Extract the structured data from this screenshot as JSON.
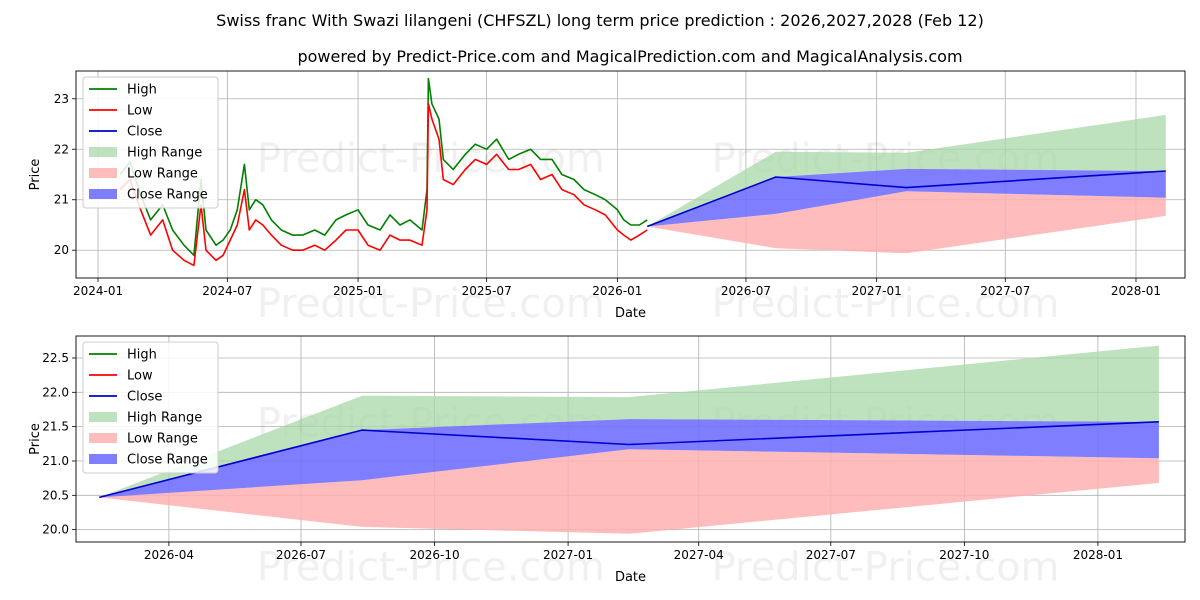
{
  "page": {
    "title": "Swiss franc With Swazi lilangeni (CHFSZL) long term price prediction : 2026,2027,2028 (Feb 12)",
    "subtitle": "powered by Predict-Price.com and MagicalPrediction.com and MagicalAnalysis.com",
    "watermark": "Predict-Price.com"
  },
  "colors": {
    "high": "#008000",
    "low": "#ff0000",
    "close": "#0000cd",
    "high_range": "#a8d8a8",
    "low_range": "#ffb0b0",
    "close_range": "#7070ff",
    "grid": "#b0b0b0"
  },
  "chart_data": [
    {
      "type": "line",
      "panel": "top",
      "xlabel": "Date",
      "ylabel": "Price",
      "xlim": [
        "2023-12-01",
        "2028-03-10"
      ],
      "ylim": [
        19.45,
        23.55
      ],
      "x_ticks": [
        {
          "date": "2024-01-01",
          "label": "2024-01"
        },
        {
          "date": "2024-07-01",
          "label": "2024-07"
        },
        {
          "date": "2025-01-01",
          "label": "2025-01"
        },
        {
          "date": "2025-07-01",
          "label": "2025-07"
        },
        {
          "date": "2026-01-01",
          "label": "2026-01"
        },
        {
          "date": "2026-07-01",
          "label": "2026-07"
        },
        {
          "date": "2027-01-01",
          "label": "2027-01"
        },
        {
          "date": "2027-07-01",
          "label": "2027-07"
        },
        {
          "date": "2028-01-01",
          "label": "2028-01"
        }
      ],
      "y_ticks": [
        {
          "value": 20,
          "label": "20"
        },
        {
          "value": 21,
          "label": "21"
        },
        {
          "value": 22,
          "label": "22"
        },
        {
          "value": 23,
          "label": "23"
        }
      ],
      "legend": [
        "High",
        "Low",
        "Close",
        "High Range",
        "Low Range",
        "Close Range"
      ],
      "legend_position": "upper-left",
      "history": {
        "dates": [
          "2024-02-01",
          "2024-02-15",
          "2024-03-01",
          "2024-03-15",
          "2024-04-01",
          "2024-04-15",
          "2024-05-01",
          "2024-05-15",
          "2024-05-25",
          "2024-06-01",
          "2024-06-15",
          "2024-06-25",
          "2024-07-05",
          "2024-07-15",
          "2024-07-25",
          "2024-08-01",
          "2024-08-10",
          "2024-08-20",
          "2024-09-01",
          "2024-09-15",
          "2024-10-01",
          "2024-10-15",
          "2024-11-01",
          "2024-11-15",
          "2024-12-01",
          "2024-12-15",
          "2025-01-01",
          "2025-01-15",
          "2025-02-01",
          "2025-02-15",
          "2025-03-01",
          "2025-03-15",
          "2025-04-01",
          "2025-04-08",
          "2025-04-10",
          "2025-04-15",
          "2025-04-25",
          "2025-05-01",
          "2025-05-15",
          "2025-06-01",
          "2025-06-15",
          "2025-07-01",
          "2025-07-15",
          "2025-08-01",
          "2025-08-15",
          "2025-09-01",
          "2025-09-15",
          "2025-10-01",
          "2025-10-15",
          "2025-11-01",
          "2025-11-15",
          "2025-12-01",
          "2025-12-15",
          "2026-01-01",
          "2026-01-10",
          "2026-01-20",
          "2026-02-01",
          "2026-02-12"
        ],
        "high": [
          21.5,
          21.75,
          21.1,
          20.6,
          20.9,
          20.4,
          20.1,
          19.9,
          21.4,
          20.4,
          20.1,
          20.2,
          20.4,
          20.8,
          21.7,
          20.8,
          21.0,
          20.9,
          20.6,
          20.4,
          20.3,
          20.3,
          20.4,
          20.3,
          20.6,
          20.7,
          20.8,
          20.5,
          20.4,
          20.7,
          20.5,
          20.6,
          20.4,
          21.2,
          23.4,
          22.9,
          22.6,
          21.8,
          21.6,
          21.9,
          22.1,
          22.0,
          22.2,
          21.8,
          21.9,
          22.0,
          21.8,
          21.8,
          21.5,
          21.4,
          21.2,
          21.1,
          21.0,
          20.8,
          20.6,
          20.5,
          20.5,
          20.6
        ],
        "low": [
          21.2,
          21.4,
          20.8,
          20.3,
          20.6,
          20.0,
          19.8,
          19.7,
          20.9,
          20.0,
          19.8,
          19.9,
          20.2,
          20.5,
          21.2,
          20.4,
          20.6,
          20.5,
          20.3,
          20.1,
          20.0,
          20.0,
          20.1,
          20.0,
          20.2,
          20.4,
          20.4,
          20.1,
          20.0,
          20.3,
          20.2,
          20.2,
          20.1,
          20.8,
          22.9,
          22.6,
          22.2,
          21.4,
          21.3,
          21.6,
          21.8,
          21.7,
          21.9,
          21.6,
          21.6,
          21.7,
          21.4,
          21.5,
          21.2,
          21.1,
          20.9,
          20.8,
          20.7,
          20.4,
          20.3,
          20.2,
          20.3,
          20.4
        ]
      },
      "forecast": {
        "dates": [
          "2026-02-12",
          "2026-08-12",
          "2027-02-12",
          "2028-02-12"
        ],
        "close": [
          20.47,
          21.45,
          21.24,
          21.57
        ],
        "high_range_top": [
          20.47,
          21.95,
          21.93,
          22.68
        ],
        "close_range_top": [
          20.47,
          21.45,
          21.61,
          21.57
        ],
        "close_range_bottom": [
          20.47,
          20.72,
          21.17,
          21.04
        ],
        "low_range_bottom": [
          20.47,
          20.04,
          19.94,
          20.68
        ]
      }
    },
    {
      "type": "line",
      "panel": "bottom",
      "xlabel": "Date",
      "ylabel": "Price",
      "xlim": [
        "2026-01-27",
        "2028-03-01"
      ],
      "ylim": [
        19.82,
        22.82
      ],
      "x_ticks": [
        {
          "date": "2026-04-01",
          "label": "2026-04"
        },
        {
          "date": "2026-07-01",
          "label": "2026-07"
        },
        {
          "date": "2026-10-01",
          "label": "2026-10"
        },
        {
          "date": "2027-01-01",
          "label": "2027-01"
        },
        {
          "date": "2027-04-01",
          "label": "2027-04"
        },
        {
          "date": "2027-07-01",
          "label": "2027-07"
        },
        {
          "date": "2027-10-01",
          "label": "2027-10"
        },
        {
          "date": "2028-01-01",
          "label": "2028-01"
        }
      ],
      "y_ticks": [
        {
          "value": 20.0,
          "label": "20.0"
        },
        {
          "value": 20.5,
          "label": "20.5"
        },
        {
          "value": 21.0,
          "label": "21.0"
        },
        {
          "value": 21.5,
          "label": "21.5"
        },
        {
          "value": 22.0,
          "label": "22.0"
        },
        {
          "value": 22.5,
          "label": "22.5"
        }
      ],
      "legend": [
        "High",
        "Low",
        "Close",
        "High Range",
        "Low Range",
        "Close Range"
      ],
      "legend_position": "upper-left",
      "forecast": {
        "dates": [
          "2026-02-12",
          "2026-08-12",
          "2027-02-12",
          "2028-02-12"
        ],
        "close": [
          20.47,
          21.45,
          21.24,
          21.57
        ],
        "high_range_top": [
          20.47,
          21.95,
          21.93,
          22.68
        ],
        "close_range_top": [
          20.47,
          21.45,
          21.61,
          21.57
        ],
        "close_range_bottom": [
          20.47,
          20.72,
          21.17,
          21.04
        ],
        "low_range_bottom": [
          20.47,
          20.04,
          19.94,
          20.68
        ]
      }
    }
  ]
}
